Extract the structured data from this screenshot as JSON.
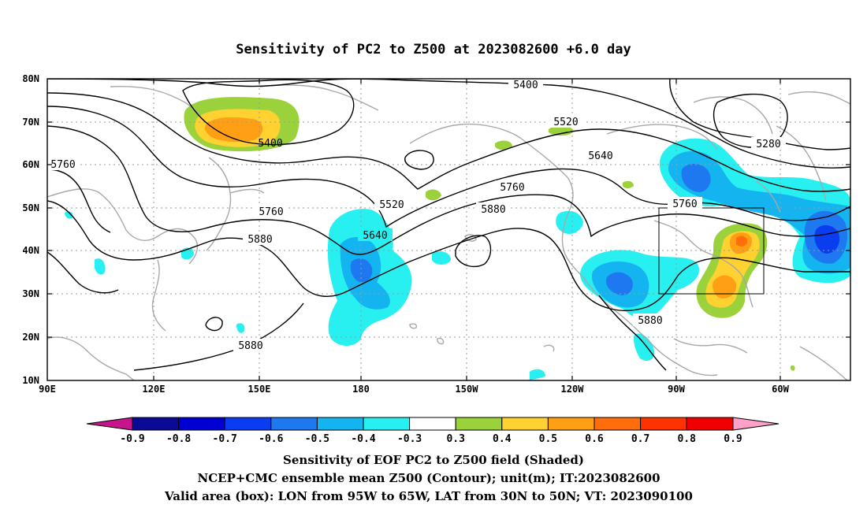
{
  "title": "Sensitivity of PC2 to Z500 at 2023082600 +6.0 day",
  "map": {
    "lat_labels": [
      "80N",
      "70N",
      "60N",
      "50N",
      "40N",
      "30N",
      "20N",
      "10N"
    ],
    "lon_labels": [
      "90E",
      "120E",
      "150E",
      "180",
      "150W",
      "120W",
      "90W",
      "60W"
    ],
    "valid_box": {
      "lon": [
        "95W",
        "65W"
      ],
      "lat": [
        "30N",
        "50N"
      ]
    }
  },
  "contour_labels": [
    {
      "text": "5400",
      "where": "north-pacific-low"
    },
    {
      "text": "5400",
      "where": "arctic"
    },
    {
      "text": "5520",
      "where": "alaska"
    },
    {
      "text": "5520",
      "where": "central-pacific"
    },
    {
      "text": "5640",
      "where": "canada"
    },
    {
      "text": "5640",
      "where": "west-pacific"
    },
    {
      "text": "5760",
      "where": "west-edge"
    },
    {
      "text": "5760",
      "where": "japan"
    },
    {
      "text": "5760",
      "where": "gulf-of-alaska"
    },
    {
      "text": "5760",
      "where": "great-lakes"
    },
    {
      "text": "5880",
      "where": "east-pacific"
    },
    {
      "text": "5880",
      "where": "west-pacific-ridge"
    },
    {
      "text": "5880",
      "where": "subtropical-west"
    },
    {
      "text": "5880",
      "where": "mexico"
    },
    {
      "text": "5280",
      "where": "baffin"
    }
  ],
  "colorbar": {
    "labels": [
      "-0.9",
      "-0.8",
      "-0.7",
      "-0.6",
      "-0.5",
      "-0.4",
      "-0.3",
      "0.3",
      "0.4",
      "0.5",
      "0.6",
      "0.7",
      "0.8",
      "0.9"
    ],
    "colors": {
      "low_triangle": "#c8148c",
      "boxes": [
        "#0a0a96",
        "#0000d2",
        "#0a3cf0",
        "#1e78f0",
        "#14b4f0",
        "#28f0f0",
        "#ffffff",
        "#9bd23c",
        "#ffd232",
        "#ffa014",
        "#ff6e0a",
        "#ff3200",
        "#f00000"
      ],
      "high_triangle": "#ffa0c8"
    }
  },
  "captions": {
    "line1": "Sensitivity of EOF PC2 to Z500 field (Shaded)",
    "line2": "NCEP+CMC ensemble mean Z500 (Contour); unit(m); IT:2023082600",
    "line3": "Valid area (box): LON from 95W to 65W, LAT from 30N to 50N; VT: 2023090100"
  }
}
